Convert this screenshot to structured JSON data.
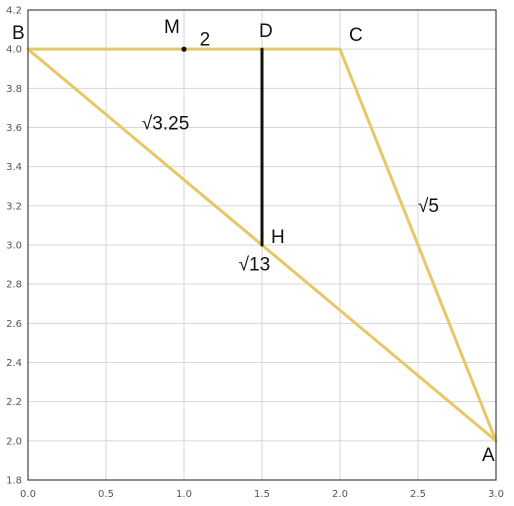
{
  "axes": {
    "x_ticks": [
      "0.0",
      "0.5",
      "1.0",
      "1.5",
      "2.0",
      "2.5",
      "3.0"
    ],
    "y_ticks": [
      "1.8",
      "2.0",
      "2.2",
      "2.4",
      "2.6",
      "2.8",
      "3.0",
      "3.2",
      "3.4",
      "3.6",
      "3.8",
      "4.0",
      "4.2"
    ],
    "xlim": [
      0,
      3
    ],
    "ylim": [
      1.8,
      4.2
    ],
    "grid": true
  },
  "colors": {
    "polygon": "#e8c766",
    "altitude": "#111111",
    "point": "#111111"
  },
  "points": [
    {
      "name": "A",
      "x": 3,
      "y": 2,
      "label": "A"
    },
    {
      "name": "B",
      "x": 0,
      "y": 4,
      "label": "B"
    },
    {
      "name": "C",
      "x": 2,
      "y": 4,
      "label": "C"
    },
    {
      "name": "D",
      "x": 1.5,
      "y": 4,
      "label": "D"
    },
    {
      "name": "H",
      "x": 1.5,
      "y": 3,
      "label": "H"
    },
    {
      "name": "M",
      "x": 1,
      "y": 4,
      "label": "M"
    }
  ],
  "segments": [
    {
      "from": "A",
      "to": "B",
      "style": "polygon"
    },
    {
      "from": "B",
      "to": "C",
      "style": "polygon"
    },
    {
      "from": "C",
      "to": "A",
      "style": "polygon"
    },
    {
      "from": "D",
      "to": "H",
      "style": "altitude"
    }
  ],
  "segment_labels": [
    {
      "text": "2",
      "x": 1.1,
      "y": 4.05
    },
    {
      "text": "√3.25",
      "x": 0.73,
      "y": 3.62
    },
    {
      "text": "√5",
      "x": 2.5,
      "y": 3.2
    },
    {
      "text": "√13",
      "x": 1.35,
      "y": 2.9
    }
  ]
}
